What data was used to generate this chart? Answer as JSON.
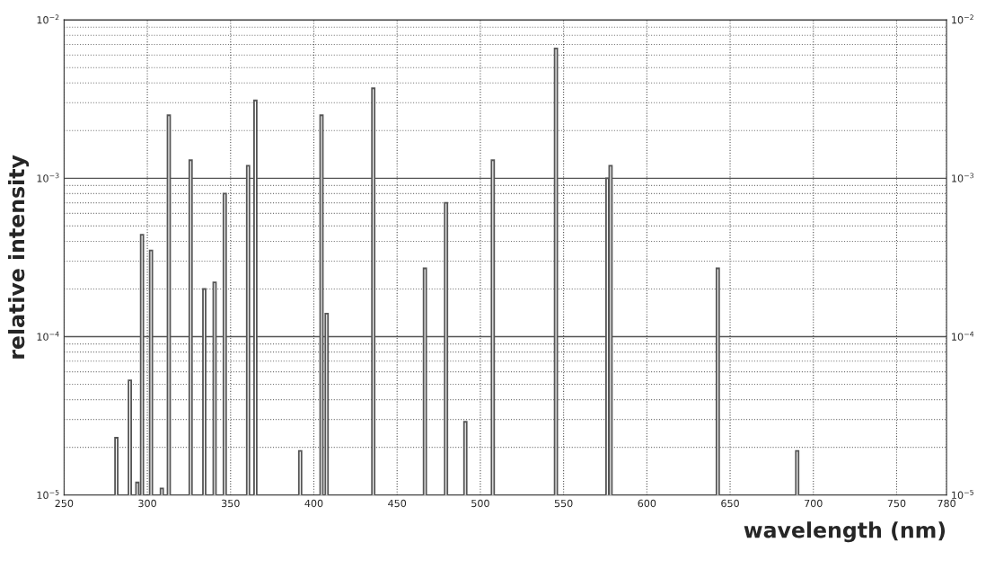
{
  "chart_data": {
    "type": "bar",
    "xlabel": "wavelength (nm)",
    "ylabel": "relative intensity",
    "x": [
      281.4,
      289.5,
      294.0,
      296.8,
      302.2,
      308.7,
      312.9,
      326.0,
      334.2,
      340.4,
      346.5,
      360.5,
      364.9,
      391.8,
      404.6,
      407.7,
      435.7,
      466.7,
      479.4,
      491.0,
      507.5,
      545.4,
      576.3,
      578.2,
      642.6,
      690.3
    ],
    "values": [
      2.3e-05,
      5.3e-05,
      1.2e-05,
      0.00044,
      0.00035,
      1.1e-05,
      0.0025,
      0.0013,
      0.0002,
      0.00022,
      0.0008,
      0.0012,
      0.0031,
      1.9e-05,
      0.0025,
      0.00014,
      0.0037,
      0.00027,
      0.0007,
      2.9e-05,
      0.0013,
      0.0066,
      0.001,
      0.0012,
      0.00027,
      1.9e-05
    ],
    "color": "#555555",
    "log": true,
    "xlim": [
      250,
      780
    ],
    "xticks": [
      250,
      300,
      350,
      400,
      450,
      500,
      550,
      600,
      650,
      700,
      750,
      780
    ],
    "ylim": [
      1e-05,
      0.01
    ],
    "yticks": [
      {
        "value": 1e-05,
        "label": "10$^{−5}$"
      },
      {
        "value": 0.0001,
        "label": "10$^{−4}$"
      },
      {
        "value": 0.001,
        "label": "10$^{−3}$"
      },
      {
        "value": 0.01,
        "label": "10$^{−2}$"
      }
    ],
    "grid": true
  }
}
